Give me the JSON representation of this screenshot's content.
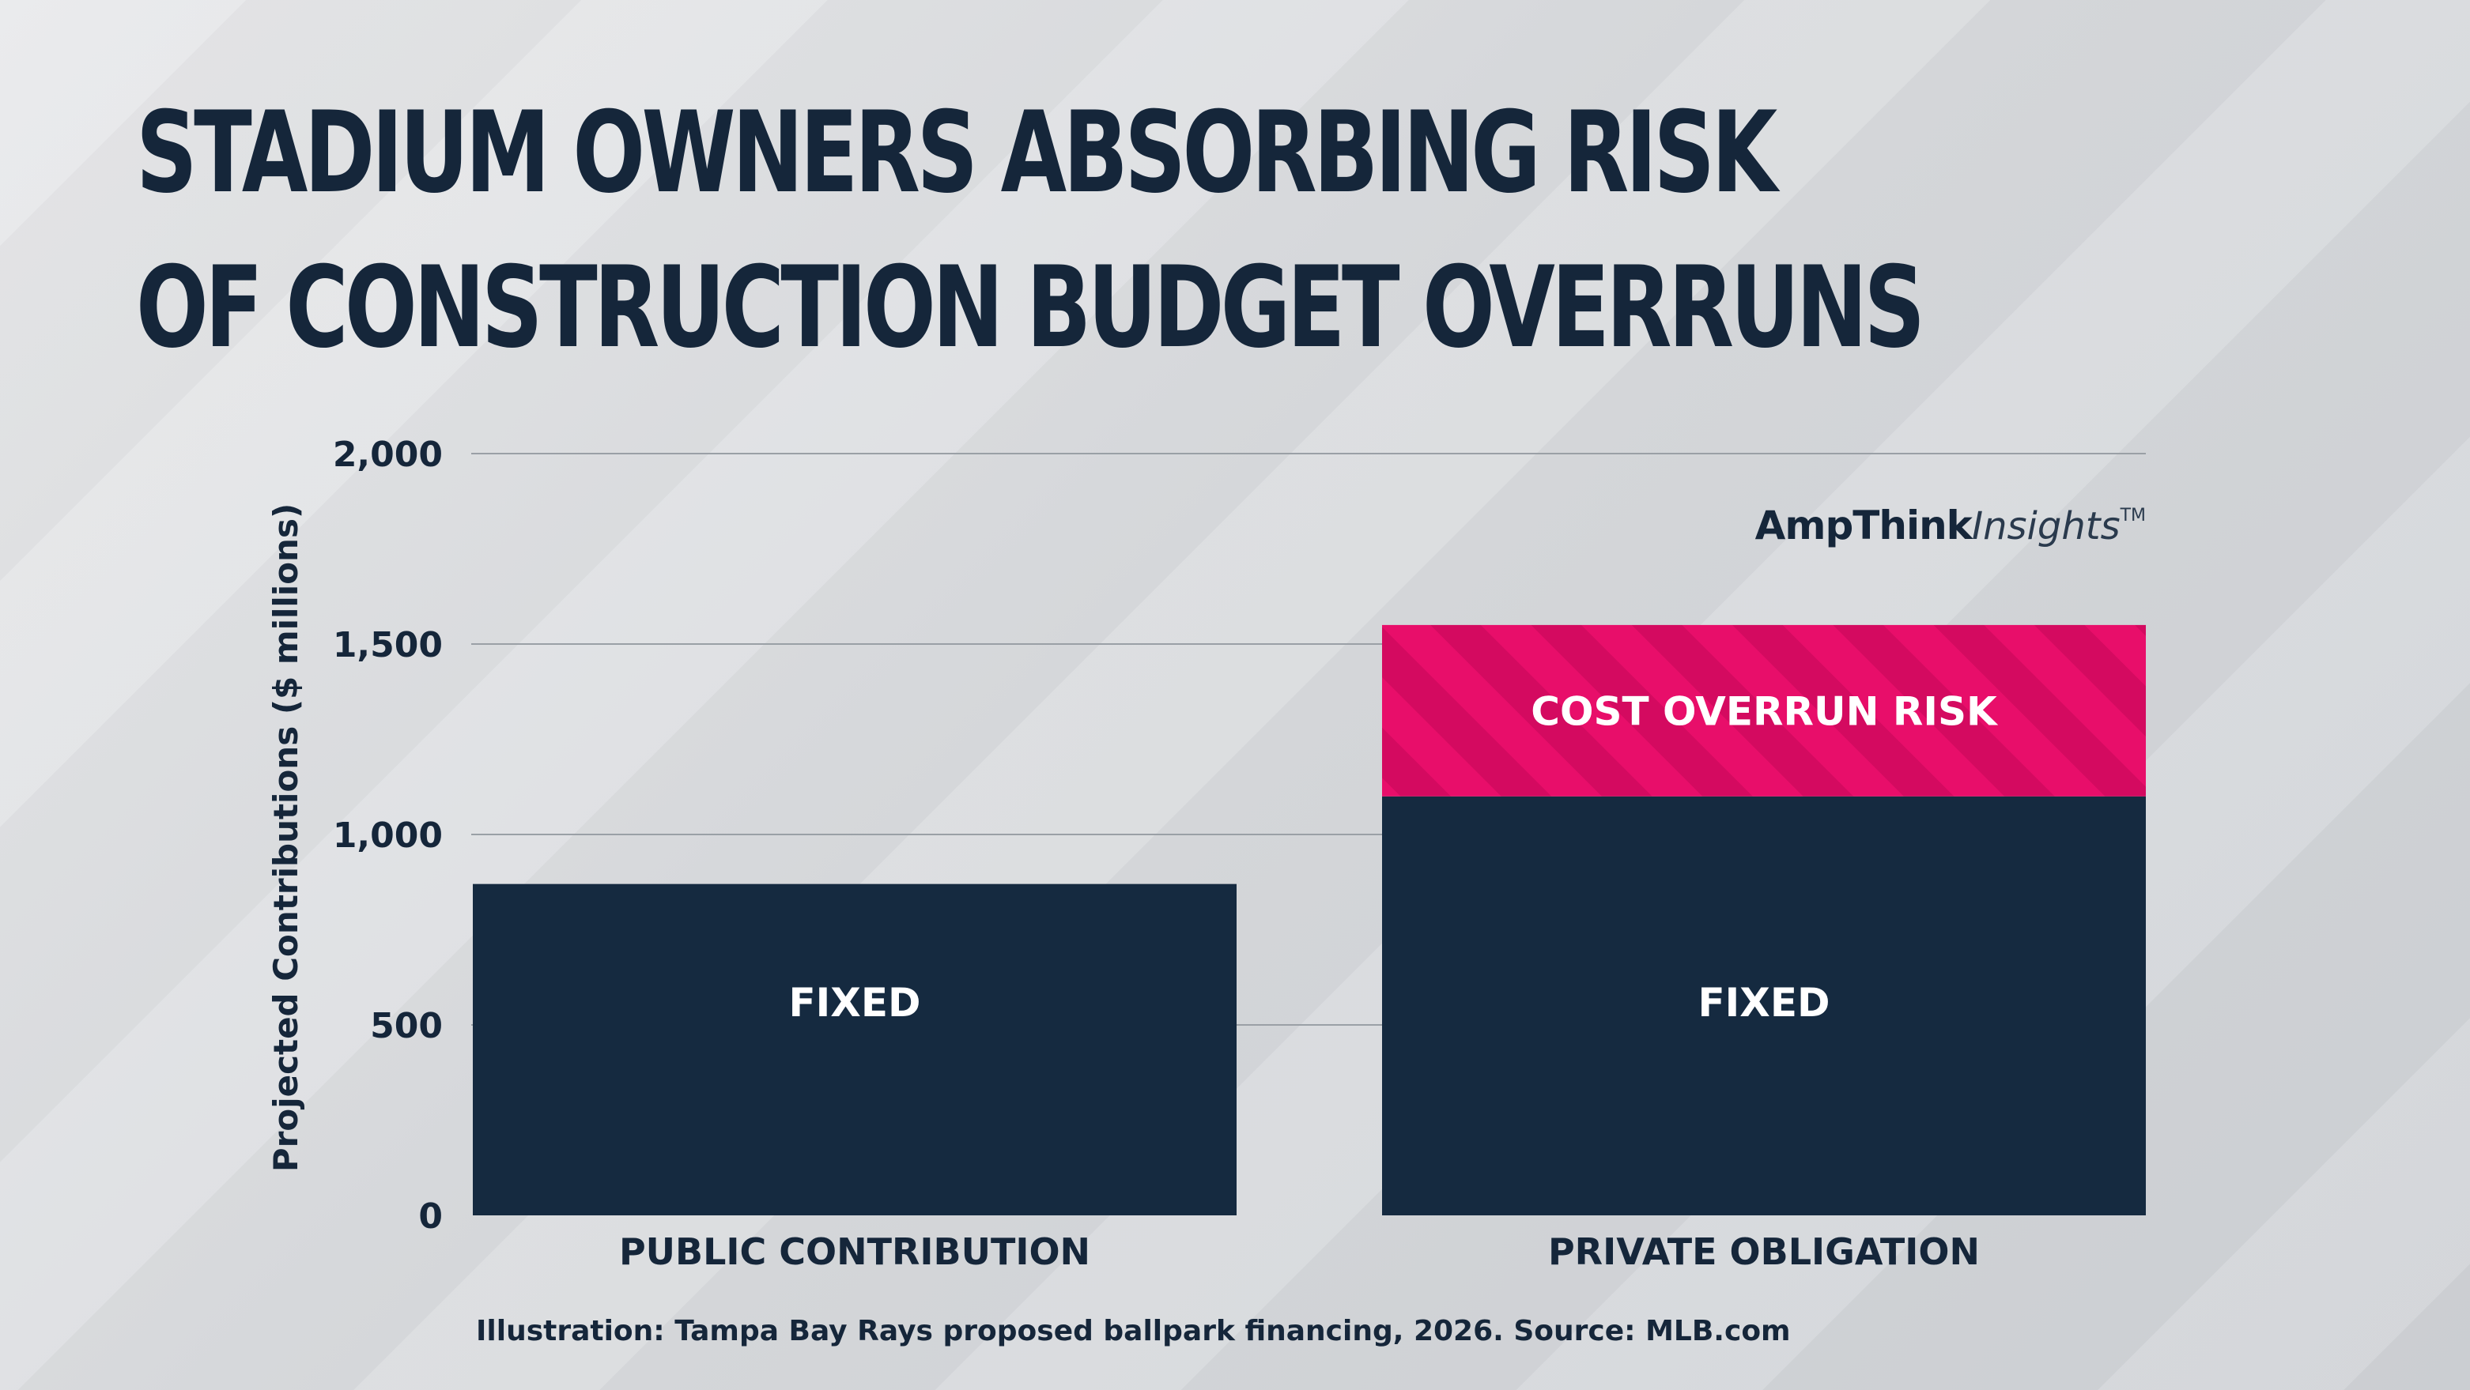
{
  "title": {
    "line1": "STADIUM OWNERS ABSORBING RISK",
    "line2": "OF CONSTRUCTION BUDGET OVERRUNS"
  },
  "logo": {
    "brand": "AmpThink",
    "insights": "Insights",
    "tm": "TM"
  },
  "source": "Illustration: Tampa Bay Rays proposed ballpark financing, 2026. Source: MLB.com",
  "colors": {
    "navy": "#152a40",
    "pink": "#e80e6a",
    "pink_stripe": "#d40a60",
    "text": "#15263a",
    "grid": "#9aa0a6"
  },
  "chart_data": {
    "type": "bar",
    "stacked": true,
    "categories": [
      "PUBLIC CONTRIBUTION",
      "PRIVATE OBLIGATION"
    ],
    "ylabel": "Projected Contributions ($ millions)",
    "ylim": [
      0,
      2000
    ],
    "yticks": [
      0,
      500,
      1000,
      1500,
      2000
    ],
    "ytick_labels": [
      "0",
      "500",
      "1,000",
      "1,500",
      "2,000"
    ],
    "grid": true,
    "series": [
      {
        "name": "FIXED",
        "values": [
          870,
          1100
        ],
        "segment_labels": [
          "FIXED",
          "FIXED"
        ],
        "color": "#152a40"
      },
      {
        "name": "COST OVERRUN RISK",
        "values": [
          0,
          450
        ],
        "segment_labels": [
          "",
          "COST OVERRUN RISK"
        ],
        "color": "#e80e6a",
        "pattern": "diagonal-stripes"
      }
    ]
  }
}
